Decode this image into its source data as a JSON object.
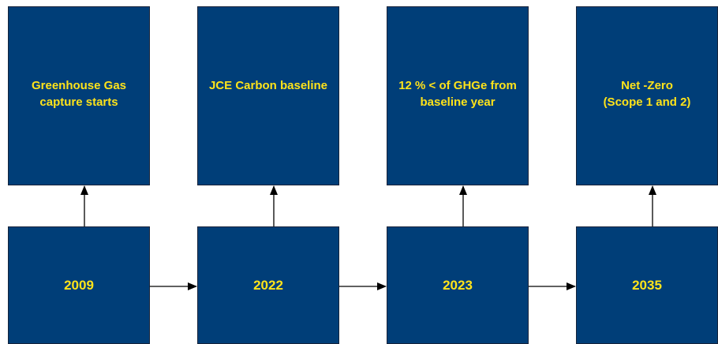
{
  "milestones": [
    {
      "label": "Greenhouse Gas\ncapture starts"
    },
    {
      "label": "JCE Carbon baseline"
    },
    {
      "label": "12 % < of GHGe from\nbaseline year"
    },
    {
      "label": "Net -Zero\n(Scope 1 and 2)"
    }
  ],
  "years": [
    {
      "label": "2009"
    },
    {
      "label": "2022"
    },
    {
      "label": "2023"
    },
    {
      "label": "2035"
    }
  ],
  "colors": {
    "box_fill": "#003e78",
    "box_text": "#ffe31a",
    "connector": "#000000"
  }
}
